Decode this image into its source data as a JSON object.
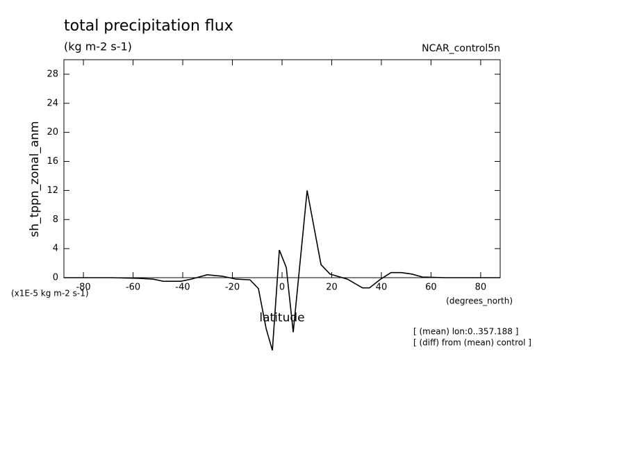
{
  "chart_data": {
    "type": "line",
    "title": "total precipitation flux",
    "subtitle": "(kg m-2 s-1)",
    "dataset": "NCAR_control5n",
    "ylabel": "sh_tppn_zonal_anm",
    "yunits": "(x1E-5 kg m-2 s-1)",
    "xlabel": "latitude",
    "xunits": "(degrees_north)",
    "annotations": [
      "[ (mean) lon:0..357.188 ]",
      "[ (diff) from (mean) control ]"
    ],
    "color": "#000000",
    "x": [
      -87.86,
      -68.8,
      -57.6,
      -52,
      -47.8,
      -40.8,
      -36.6,
      -30.2,
      -24,
      -18.5,
      -12.9,
      -9.5,
      -6.4,
      -3.9,
      -1.1,
      1.7,
      4.5,
      10.1,
      15.7,
      19.3,
      26.3,
      32.4,
      35.2,
      39.7,
      43.9,
      48.1,
      52.3,
      56.5,
      65.5,
      87.86
    ],
    "values": [
      0,
      0,
      -0.1,
      -0.2,
      -0.5,
      -0.5,
      -0.2,
      0.4,
      0.2,
      -0.2,
      -0.3,
      -1.5,
      -7,
      -10,
      3.8,
      1.4,
      -7.5,
      12,
      1.8,
      0.5,
      -0.2,
      -1.4,
      -1.4,
      -0.2,
      0.7,
      0.7,
      0.5,
      0.1,
      0,
      0
    ],
    "xlim": [
      -87.86,
      87.86
    ],
    "ylim": [
      0,
      30
    ],
    "xticks": [
      -80,
      -60,
      -40,
      -20,
      0,
      20,
      40,
      60,
      80
    ],
    "yticks": [
      0,
      4,
      8,
      12,
      16,
      20,
      24,
      28
    ]
  }
}
